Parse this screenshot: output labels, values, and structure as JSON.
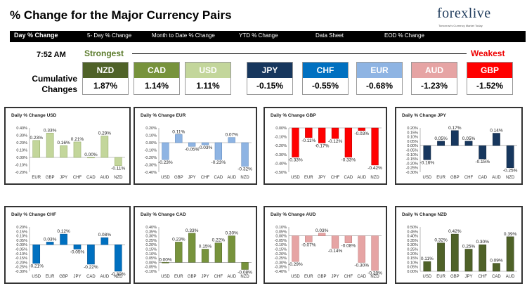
{
  "header": {
    "title": "% Change for the Major Currency Pairs",
    "logo": "forexlive",
    "logo_sub": "Tomorrow's Currency Market Today"
  },
  "nav": [
    {
      "label": "Day % Change",
      "active": true
    },
    {
      "label": "5- Day % Change",
      "active": false
    },
    {
      "label": "Month to Date % Change",
      "active": false
    },
    {
      "label": "YTD % Change",
      "active": false
    },
    {
      "label": "Data Sheet",
      "active": false
    },
    {
      "label": "EOD % Change",
      "active": false
    }
  ],
  "summary": {
    "time": "7:52 AM",
    "strongest_label": "Strongest",
    "weakest_label": "Weakest",
    "cumulative_label_1": "Cumulative",
    "cumulative_label_2": "Changes",
    "currencies": [
      {
        "code": "NZD",
        "value": "1.87%",
        "color": "#4f6228"
      },
      {
        "code": "CAD",
        "value": "1.14%",
        "color": "#77933c"
      },
      {
        "code": "USD",
        "value": "1.11%",
        "color": "#c3d69b"
      },
      {
        "code": "JPY",
        "value": "-0.15%",
        "color": "#17375e"
      },
      {
        "code": "CHF",
        "value": "-0.55%",
        "color": "#0070c0"
      },
      {
        "code": "EUR",
        "value": "-0.68%",
        "color": "#8eb4e3"
      },
      {
        "code": "AUD",
        "value": "-1.23%",
        "color": "#e6a4a4"
      },
      {
        "code": "GBP",
        "value": "-1.52%",
        "color": "#ff0000"
      }
    ]
  },
  "chart_data": [
    {
      "type": "bar",
      "title": "Daily % Change USD",
      "categories": [
        "EUR",
        "GBP",
        "JPY",
        "CHF",
        "CAD",
        "AUD",
        "NZD"
      ],
      "values": [
        0.23,
        0.33,
        0.16,
        0.21,
        0.0,
        0.29,
        -0.11
      ],
      "labels": [
        "0.23%",
        "0.33%",
        "0.16%",
        "0.21%",
        "0.00%",
        "0.29%",
        "-0.11%"
      ],
      "ylim": [
        -0.2,
        0.4
      ],
      "ticks": [
        "0.40%",
        "0.30%",
        "0.20%",
        "0.10%",
        "0.00%",
        "-0.10%",
        "-0.20%"
      ],
      "color": "#c3d69b",
      "dark": "#8aa35a"
    },
    {
      "type": "bar",
      "title": "Daily % Change EUR",
      "categories": [
        "USD",
        "GBP",
        "JPY",
        "CHF",
        "CAD",
        "AUD",
        "NZD"
      ],
      "values": [
        -0.23,
        0.11,
        -0.05,
        -0.03,
        -0.23,
        0.07,
        -0.32
      ],
      "labels": [
        "-0.23%",
        "0.11%",
        "-0.05%",
        "-0.03%",
        "-0.23%",
        "0.07%",
        "-0.32%"
      ],
      "ylim": [
        -0.4,
        0.2
      ],
      "ticks": [
        "0.20%",
        "0.10%",
        "0.00%",
        "-0.10%",
        "-0.20%",
        "-0.30%",
        "-0.40%"
      ],
      "color": "#8eb4e3",
      "dark": "#5a84b8"
    },
    {
      "type": "bar",
      "title": "Daily % Change GBP",
      "categories": [
        "USD",
        "EUR",
        "JPY",
        "CHF",
        "CAD",
        "AUD",
        "NZD"
      ],
      "values": [
        -0.33,
        -0.11,
        -0.17,
        -0.12,
        -0.33,
        -0.03,
        -0.42
      ],
      "labels": [
        "-0.33%",
        "-0.11%",
        "-0.17%",
        "-0.12%",
        "-0.33%",
        "-0.03%",
        "-0.42%"
      ],
      "ylim": [
        -0.5,
        0.0
      ],
      "ticks": [
        "0.00%",
        "-0.10%",
        "-0.20%",
        "-0.30%",
        "-0.40%",
        "-0.50%"
      ],
      "color": "#ff0000",
      "dark": "#b00000"
    },
    {
      "type": "bar",
      "title": "Daily % Change JPY",
      "categories": [
        "USD",
        "EUR",
        "GBP",
        "CHF",
        "CAD",
        "AUD",
        "NZD"
      ],
      "values": [
        -0.16,
        0.05,
        0.17,
        0.05,
        -0.15,
        0.14,
        -0.25
      ],
      "labels": [
        "-0.16%",
        "0.05%",
        "0.17%",
        "0.05%",
        "-0.15%",
        "0.14%",
        "-0.25%"
      ],
      "ylim": [
        -0.3,
        0.2
      ],
      "ticks": [
        "0.20%",
        "0.15%",
        "0.10%",
        "0.05%",
        "0.00%",
        "-0.05%",
        "-0.10%",
        "-0.15%",
        "-0.20%",
        "-0.25%",
        "-0.30%"
      ],
      "color": "#17375e",
      "dark": "#0b1e36"
    },
    {
      "type": "bar",
      "title": "Daily % Change CHF",
      "categories": [
        "USD",
        "EUR",
        "GBP",
        "JPY",
        "CAD",
        "AUD",
        "NZD"
      ],
      "values": [
        -0.21,
        0.03,
        0.12,
        -0.05,
        -0.22,
        0.08,
        -0.3
      ],
      "labels": [
        "-0.21%",
        "0.03%",
        "0.12%",
        "-0.05%",
        "-0.22%",
        "0.08%",
        "-0.30%"
      ],
      "ylim": [
        -0.3,
        0.2
      ],
      "ticks": [
        "0.20%",
        "0.15%",
        "0.10%",
        "0.05%",
        "0.00%",
        "-0.05%",
        "-0.10%",
        "-0.15%",
        "-0.20%",
        "-0.25%",
        "-0.30%"
      ],
      "color": "#0070c0",
      "dark": "#004b85"
    },
    {
      "type": "bar",
      "title": "Daily % Change CAD",
      "categories": [
        "USD",
        "EUR",
        "GBP",
        "JPY",
        "CHF",
        "AUD",
        "NZD"
      ],
      "values": [
        0.0,
        0.23,
        0.33,
        0.15,
        0.22,
        0.3,
        -0.08
      ],
      "labels": [
        "0.00%",
        "0.23%",
        "0.33%",
        "0.15%",
        "0.22%",
        "0.30%",
        "-0.08%"
      ],
      "ylim": [
        -0.1,
        0.4
      ],
      "ticks": [
        "0.40%",
        "0.35%",
        "0.30%",
        "0.25%",
        "0.20%",
        "0.15%",
        "0.10%",
        "0.05%",
        "0.00%",
        "-0.05%",
        "-0.10%"
      ],
      "color": "#77933c",
      "dark": "#4f6228"
    },
    {
      "type": "bar",
      "title": "Daily % Change AUD",
      "categories": [
        "USD",
        "EUR",
        "GBP",
        "JPY",
        "CHF",
        "CAD",
        "NZD"
      ],
      "values": [
        -0.29,
        -0.07,
        0.03,
        -0.14,
        -0.08,
        -0.3,
        -0.39
      ],
      "labels": [
        "-0.29%",
        "-0.07%",
        "0.03%",
        "-0.14%",
        "-0.08%",
        "-0.30%",
        "-0.39%"
      ],
      "ylim": [
        -0.4,
        0.1
      ],
      "ticks": [
        "0.10%",
        "0.05%",
        "0.00%",
        "-0.05%",
        "-0.10%",
        "-0.15%",
        "-0.20%",
        "-0.25%",
        "-0.30%",
        "-0.35%",
        "-0.40%"
      ],
      "color": "#e6a4a4",
      "dark": "#b87070"
    },
    {
      "type": "bar",
      "title": "Daily % Change NZD",
      "categories": [
        "USD",
        "EUR",
        "GBP",
        "JPY",
        "CHF",
        "CAD",
        "AUD"
      ],
      "values": [
        0.11,
        0.32,
        0.42,
        0.25,
        0.3,
        0.09,
        0.39
      ],
      "labels": [
        "0.11%",
        "0.32%",
        "0.42%",
        "0.25%",
        "0.30%",
        "0.09%",
        "0.39%"
      ],
      "ylim": [
        0.0,
        0.5
      ],
      "ticks": [
        "0.50%",
        "0.45%",
        "0.40%",
        "0.35%",
        "0.30%",
        "0.25%",
        "0.20%",
        "0.15%",
        "0.10%",
        "0.05%",
        "0.00%"
      ],
      "color": "#4f6228",
      "dark": "#2f3b16"
    }
  ]
}
